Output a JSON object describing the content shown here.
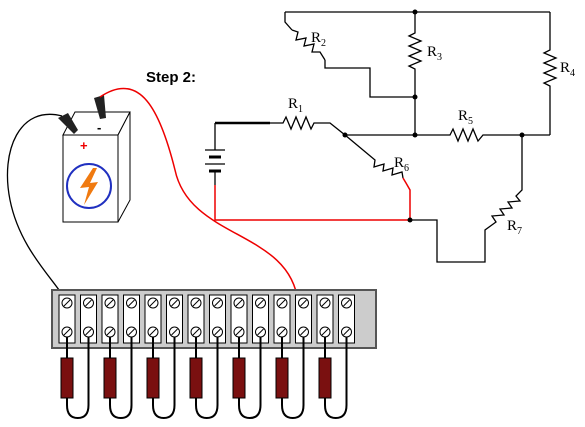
{
  "step_label": "Step 2:",
  "battery": {
    "positive": "+",
    "negative": "-"
  },
  "resistors": [
    {
      "letter": "R",
      "sub": "1"
    },
    {
      "letter": "R",
      "sub": "2"
    },
    {
      "letter": "R",
      "sub": "3"
    },
    {
      "letter": "R",
      "sub": "4"
    },
    {
      "letter": "R",
      "sub": "5"
    },
    {
      "letter": "R",
      "sub": "6"
    },
    {
      "letter": "R",
      "sub": "7"
    }
  ]
}
